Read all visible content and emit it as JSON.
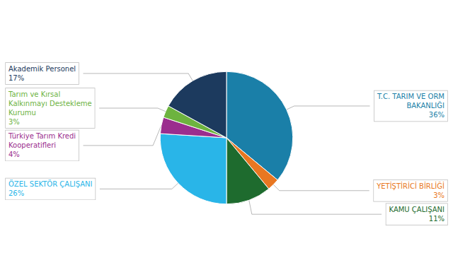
{
  "chart_data": {
    "type": "pie",
    "categories": [
      "T.C. TARIM VE ORM\nBAKANLIĞI",
      "YETİŞTİRİCİ BİRLİĞİ",
      "KAMU ÇALIŞANI",
      "ÖZEL SEKTÖR ÇALIŞANI",
      "Türkiye Tarım Kredi\nKooperatifleri",
      "Tarım ve Kırsal\nKalkınmayı Destekleme\nKurumu",
      "Akademik Personel"
    ],
    "values": [
      36,
      3,
      11,
      26,
      4,
      3,
      17
    ],
    "value_labels": [
      "36%",
      "3%",
      "11%",
      "26%",
      "4%",
      "3%",
      "17%"
    ],
    "colors": [
      "#1a7fa8",
      "#e87722",
      "#1e6b2e",
      "#29b5e8",
      "#9b2d8e",
      "#6db33f",
      "#1c3a5e"
    ],
    "data_labels": true
  }
}
